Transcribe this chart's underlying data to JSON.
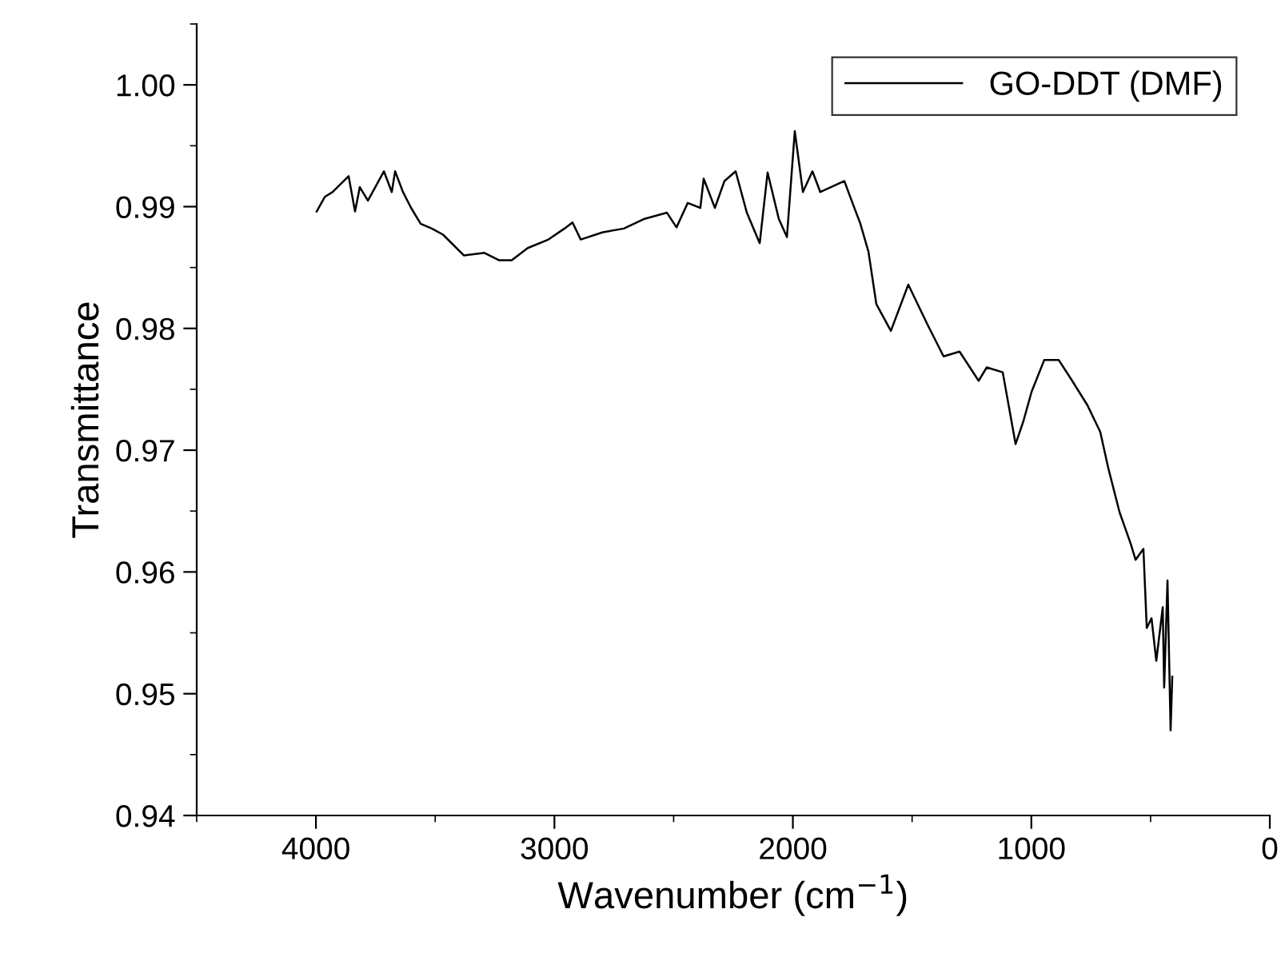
{
  "chart_data": {
    "type": "line",
    "xlabel": "Wavenumber (cm$^{−1}$)",
    "ylabel": "Transmittance",
    "xlim": [
      4500,
      0
    ],
    "xticks": [
      4000,
      3000,
      2000,
      1000,
      0
    ],
    "ylim": [
      0.94,
      1.005
    ],
    "yticks": [
      {
        "value": 0.94,
        "label": "0.94"
      },
      {
        "value": 0.95,
        "label": "0.95"
      },
      {
        "value": 0.96,
        "label": "0.96"
      },
      {
        "value": 0.97,
        "label": "0.97"
      },
      {
        "value": 0.98,
        "label": "0.98"
      },
      {
        "value": 0.99,
        "label": "0.99"
      },
      {
        "value": 1.0,
        "label": "1.00"
      }
    ],
    "grid": false,
    "legend": "top right",
    "marker": "none",
    "line_style": "solid",
    "series": [
      {
        "name": "GO-DDT (DMF)",
        "color": "#000000",
        "x": [
          3997,
          3963,
          3930,
          3863,
          3836,
          3816,
          3782,
          3715,
          3682,
          3668,
          3635,
          3601,
          3561,
          3514,
          3467,
          3380,
          3293,
          3233,
          3179,
          3112,
          3025,
          2958,
          2924,
          2890,
          2797,
          2709,
          2622,
          2528,
          2488,
          2441,
          2388,
          2374,
          2327,
          2287,
          2240,
          2193,
          2139,
          2106,
          2059,
          2025,
          1992,
          1958,
          1918,
          1885,
          1784,
          1750,
          1717,
          1683,
          1650,
          1589,
          1516,
          1435,
          1368,
          1301,
          1221,
          1187,
          1120,
          1066,
          1033,
          999,
          946,
          885,
          832,
          765,
          711,
          677,
          630,
          583,
          563,
          530,
          516,
          496,
          476,
          449,
          443,
          429,
          416,
          409
        ],
        "values": [
          0.9896,
          0.9908,
          0.9912,
          0.9925,
          0.9896,
          0.9916,
          0.9905,
          0.9929,
          0.9912,
          0.9929,
          0.9912,
          0.9899,
          0.9886,
          0.9882,
          0.9877,
          0.986,
          0.9862,
          0.9856,
          0.9856,
          0.9866,
          0.9873,
          0.9882,
          0.9887,
          0.9873,
          0.9879,
          0.9882,
          0.989,
          0.9895,
          0.9883,
          0.9903,
          0.9899,
          0.9923,
          0.9899,
          0.9921,
          0.9929,
          0.9895,
          0.987,
          0.9928,
          0.989,
          0.9875,
          0.9962,
          0.9912,
          0.9929,
          0.9912,
          0.9921,
          0.9903,
          0.9886,
          0.9863,
          0.982,
          0.9798,
          0.9836,
          0.9803,
          0.9777,
          0.9781,
          0.9757,
          0.9768,
          0.9764,
          0.9705,
          0.9724,
          0.9748,
          0.9774,
          0.9774,
          0.9758,
          0.9737,
          0.9715,
          0.9685,
          0.9649,
          0.9623,
          0.961,
          0.9619,
          0.9554,
          0.9562,
          0.9527,
          0.9571,
          0.9505,
          0.9593,
          0.947,
          0.9514
        ]
      }
    ]
  }
}
